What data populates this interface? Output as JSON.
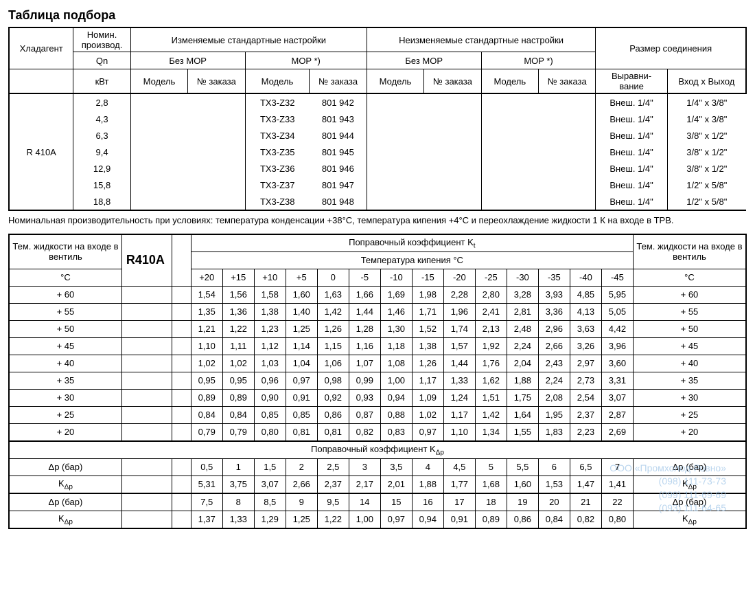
{
  "title": "Таблица подбора",
  "table1": {
    "headers": {
      "refrigerant": "Хладагент",
      "nominal": "Номин. производ.",
      "qn": "Qn",
      "kw": "кВт",
      "adj": "Изменяемые стандартные  настройки",
      "nonadj": "Неизменяемые стандартные  настройки",
      "conn": "Размер соединения",
      "noMOP": "Без MOP",
      "mop": "MOP *)",
      "model": "Модель",
      "order": "№ заказа",
      "equal": "Выравни- вание",
      "inout": "Вход x Выход"
    },
    "refrigerant": "R 410A",
    "rows": [
      {
        "qn": "2,8",
        "m": "TX3-Z32",
        "o": "801 942",
        "eq": "Внеш. 1/4\"",
        "io": "1/4\" x 3/8\""
      },
      {
        "qn": "4,3",
        "m": "TX3-Z33",
        "o": "801 943",
        "eq": "Внеш. 1/4\"",
        "io": "1/4\" x 3/8\""
      },
      {
        "qn": "6,3",
        "m": "TX3-Z34",
        "o": "801 944",
        "eq": "Внеш. 1/4\"",
        "io": "3/8\" x 1/2\""
      },
      {
        "qn": "9,4",
        "m": "TX3-Z35",
        "o": "801 945",
        "eq": "Внеш. 1/4\"",
        "io": "3/8\" x 1/2\""
      },
      {
        "qn": "12,9",
        "m": "TX3-Z36",
        "o": "801 946",
        "eq": "Внеш. 1/4\"",
        "io": "3/8\" x 1/2\""
      },
      {
        "qn": "15,8",
        "m": "TX3-Z37",
        "o": "801 947",
        "eq": "Внеш. 1/4\"",
        "io": "1/2\" x 5/8\""
      },
      {
        "qn": "18,8",
        "m": "TX3-Z38",
        "o": "801 948",
        "eq": "Внеш. 1/4\"",
        "io": "1/2\" x 5/8\""
      }
    ]
  },
  "note": "Номинальная производительность при условиях: температура конденсации +38°С, температура кипения +4°С и переохлаждение жидкости 1 К на входе в ТРВ.",
  "table2": {
    "refr": "R410A",
    "kt_title": "Поправочный коэффициент K",
    "kt_sub": "t",
    "boil": "Температура кипения °С",
    "liqL": "Тем. жидкости на входе в вентиль",
    "degC": "°С",
    "temps": [
      "+20",
      "+15",
      "+10",
      "+5",
      "0",
      "-5",
      "-10",
      "-15",
      "-20",
      "-25",
      "-30",
      "-35",
      "-40",
      "-45"
    ],
    "rows": [
      {
        "t": "+ 60",
        "v": [
          "1,54",
          "1,56",
          "1,58",
          "1,60",
          "1,63",
          "1,66",
          "1,69",
          "1,98",
          "2,28",
          "2,80",
          "3,28",
          "3,93",
          "4,85",
          "5,95"
        ]
      },
      {
        "t": "+ 55",
        "v": [
          "1,35",
          "1,36",
          "1,38",
          "1,40",
          "1,42",
          "1,44",
          "1,46",
          "1,71",
          "1,96",
          "2,41",
          "2,81",
          "3,36",
          "4,13",
          "5,05"
        ]
      },
      {
        "t": "+ 50",
        "v": [
          "1,21",
          "1,22",
          "1,23",
          "1,25",
          "1,26",
          "1,28",
          "1,30",
          "1,52",
          "1,74",
          "2,13",
          "2,48",
          "2,96",
          "3,63",
          "4,42"
        ]
      },
      {
        "t": "+ 45",
        "v": [
          "1,10",
          "1,11",
          "1,12",
          "1,14",
          "1,15",
          "1,16",
          "1,18",
          "1,38",
          "1,57",
          "1,92",
          "2,24",
          "2,66",
          "3,26",
          "3,96"
        ]
      },
      {
        "t": "+ 40",
        "v": [
          "1,02",
          "1,02",
          "1,03",
          "1,04",
          "1,06",
          "1,07",
          "1,08",
          "1,26",
          "1,44",
          "1,76",
          "2,04",
          "2,43",
          "2,97",
          "3,60"
        ]
      },
      {
        "t": "+ 35",
        "v": [
          "0,95",
          "0,95",
          "0,96",
          "0,97",
          "0,98",
          "0,99",
          "1,00",
          "1,17",
          "1,33",
          "1,62",
          "1,88",
          "2,24",
          "2,73",
          "3,31"
        ]
      },
      {
        "t": "+ 30",
        "v": [
          "0,89",
          "0,89",
          "0,90",
          "0,91",
          "0,92",
          "0,93",
          "0,94",
          "1,09",
          "1,24",
          "1,51",
          "1,75",
          "2,08",
          "2,54",
          "3,07"
        ]
      },
      {
        "t": "+ 25",
        "v": [
          "0,84",
          "0,84",
          "0,85",
          "0,85",
          "0,86",
          "0,87",
          "0,88",
          "1,02",
          "1,17",
          "1,42",
          "1,64",
          "1,95",
          "2,37",
          "2,87"
        ]
      },
      {
        "t": "+ 20",
        "v": [
          "0,79",
          "0,79",
          "0,80",
          "0,81",
          "0,81",
          "0,82",
          "0,83",
          "0,97",
          "1,10",
          "1,34",
          "1,55",
          "1,83",
          "2,23",
          "2,69"
        ]
      }
    ],
    "kdp_title": "Поправочный коэффициент K",
    "kdp_sub": "Δp",
    "dp_label": "Δp (бар)",
    "kdp_label": "K",
    "dp1": [
      "0,5",
      "1",
      "1,5",
      "2",
      "2,5",
      "3",
      "3,5",
      "4",
      "4,5",
      "5",
      "5,5",
      "6",
      "6,5",
      "7"
    ],
    "k1": [
      "5,31",
      "3,75",
      "3,07",
      "2,66",
      "2,37",
      "2,17",
      "2,01",
      "1,88",
      "1,77",
      "1,68",
      "1,60",
      "1,53",
      "1,47",
      "1,41"
    ],
    "dp2": [
      "7,5",
      "8",
      "8,5",
      "9",
      "9,5",
      "14",
      "15",
      "16",
      "17",
      "18",
      "19",
      "20",
      "21",
      "22"
    ],
    "k2": [
      "1,37",
      "1,33",
      "1,29",
      "1,25",
      "1,22",
      "1,00",
      "0,97",
      "0,94",
      "0,91",
      "0,89",
      "0,86",
      "0,84",
      "0,82",
      "0,80"
    ]
  },
  "watermark": {
    "l1": "ООО «Промхолод-Ровно»",
    "l2": "(098) 111-73-73",
    "l3": "(099) 111-69-69",
    "l4": "(093) 111-64-65"
  }
}
